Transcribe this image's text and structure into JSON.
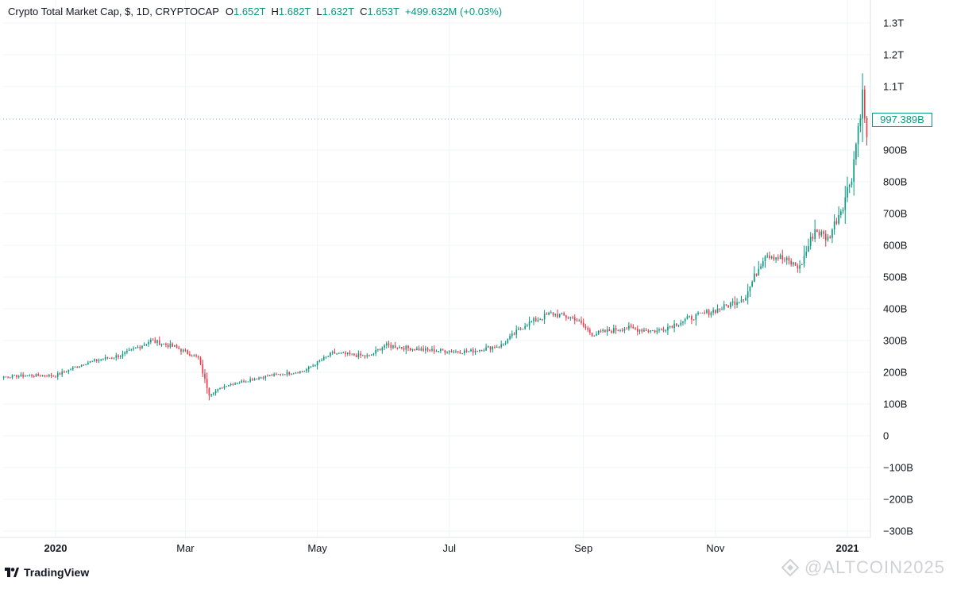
{
  "header": {
    "symbol": "Crypto Total Market Cap, $, 1D, CRYPTOCAP",
    "open_key": "O",
    "open": "1.652T",
    "high_key": "H",
    "high": "1.682T",
    "low_key": "L",
    "low": "1.632T",
    "close_key": "C",
    "close": "1.653T",
    "change": "+499.632M (+0.03%)"
  },
  "last_price_label": "997.389B",
  "footer": {
    "brand": "TradingView"
  },
  "watermark": "@ALTCOIN2025",
  "colors": {
    "up": "#089981",
    "down": "#f23645",
    "grid": "#f0f3fa",
    "text": "#131722"
  },
  "chart_data": {
    "type": "candlestick",
    "title": "Crypto Total Market Cap, $, 1D, CRYPTOCAP",
    "y_unit": "USD",
    "ylim": [
      -320000000000,
      1340000000000
    ],
    "y_ticks": [
      {
        "value": 1300,
        "label": "1.3T"
      },
      {
        "value": 1200,
        "label": "1.2T"
      },
      {
        "value": 1100,
        "label": "1.1T"
      },
      {
        "value": 900,
        "label": "900B"
      },
      {
        "value": 800,
        "label": "800B"
      },
      {
        "value": 700,
        "label": "700B"
      },
      {
        "value": 600,
        "label": "600B"
      },
      {
        "value": 500,
        "label": "500B"
      },
      {
        "value": 400,
        "label": "400B"
      },
      {
        "value": 300,
        "label": "300B"
      },
      {
        "value": 200,
        "label": "200B"
      },
      {
        "value": 100,
        "label": "100B"
      },
      {
        "value": 0,
        "label": "0"
      },
      {
        "value": -100,
        "label": "−100B"
      },
      {
        "value": -200,
        "label": "−200B"
      },
      {
        "value": -300,
        "label": "−300B"
      }
    ],
    "x_ticks": [
      {
        "date": "2020-01-01",
        "label": "2020",
        "bold": true
      },
      {
        "date": "2020-03-01",
        "label": "Mar",
        "bold": false
      },
      {
        "date": "2020-05-01",
        "label": "May",
        "bold": false
      },
      {
        "date": "2020-07-01",
        "label": "Jul",
        "bold": false
      },
      {
        "date": "2020-09-01",
        "label": "Sep",
        "bold": false
      },
      {
        "date": "2020-11-01",
        "label": "Nov",
        "bold": false
      },
      {
        "date": "2021-01-01",
        "label": "2021",
        "bold": true
      }
    ],
    "x_range": [
      "2019-11-20",
      "2021-01-22"
    ],
    "value_scale": "billions USD",
    "close_path": [
      {
        "date": "2019-11-20",
        "close": 200
      },
      {
        "date": "2019-12-05",
        "close": 185
      },
      {
        "date": "2019-12-20",
        "close": 190
      },
      {
        "date": "2020-01-01",
        "close": 190
      },
      {
        "date": "2020-01-15",
        "close": 230
      },
      {
        "date": "2020-02-01",
        "close": 255
      },
      {
        "date": "2020-02-14",
        "close": 300
      },
      {
        "date": "2020-02-25",
        "close": 280
      },
      {
        "date": "2020-03-07",
        "close": 245
      },
      {
        "date": "2020-03-12",
        "close": 130
      },
      {
        "date": "2020-03-20",
        "close": 160
      },
      {
        "date": "2020-04-05",
        "close": 185
      },
      {
        "date": "2020-04-25",
        "close": 205
      },
      {
        "date": "2020-05-08",
        "close": 260
      },
      {
        "date": "2020-05-25",
        "close": 250
      },
      {
        "date": "2020-06-01",
        "close": 285
      },
      {
        "date": "2020-06-20",
        "close": 270
      },
      {
        "date": "2020-07-10",
        "close": 265
      },
      {
        "date": "2020-07-25",
        "close": 285
      },
      {
        "date": "2020-08-05",
        "close": 350
      },
      {
        "date": "2020-08-17",
        "close": 385
      },
      {
        "date": "2020-08-28",
        "close": 370
      },
      {
        "date": "2020-09-05",
        "close": 320
      },
      {
        "date": "2020-09-20",
        "close": 340
      },
      {
        "date": "2020-10-05",
        "close": 330
      },
      {
        "date": "2020-10-20",
        "close": 370
      },
      {
        "date": "2020-11-05",
        "close": 405
      },
      {
        "date": "2020-11-15",
        "close": 440
      },
      {
        "date": "2020-11-24",
        "close": 575
      },
      {
        "date": "2020-12-01",
        "close": 560
      },
      {
        "date": "2020-12-10",
        "close": 530
      },
      {
        "date": "2020-12-17",
        "close": 650
      },
      {
        "date": "2020-12-23",
        "close": 620
      },
      {
        "date": "2020-12-30",
        "close": 730
      },
      {
        "date": "2021-01-03",
        "close": 820
      },
      {
        "date": "2021-01-08",
        "close": 1075
      },
      {
        "date": "2021-01-11",
        "close": 860
      },
      {
        "date": "2021-01-14",
        "close": 1040
      },
      {
        "date": "2021-01-18",
        "close": 980
      },
      {
        "date": "2021-01-22",
        "close": 997.389
      }
    ],
    "last_value": 997.389,
    "grid": true
  }
}
